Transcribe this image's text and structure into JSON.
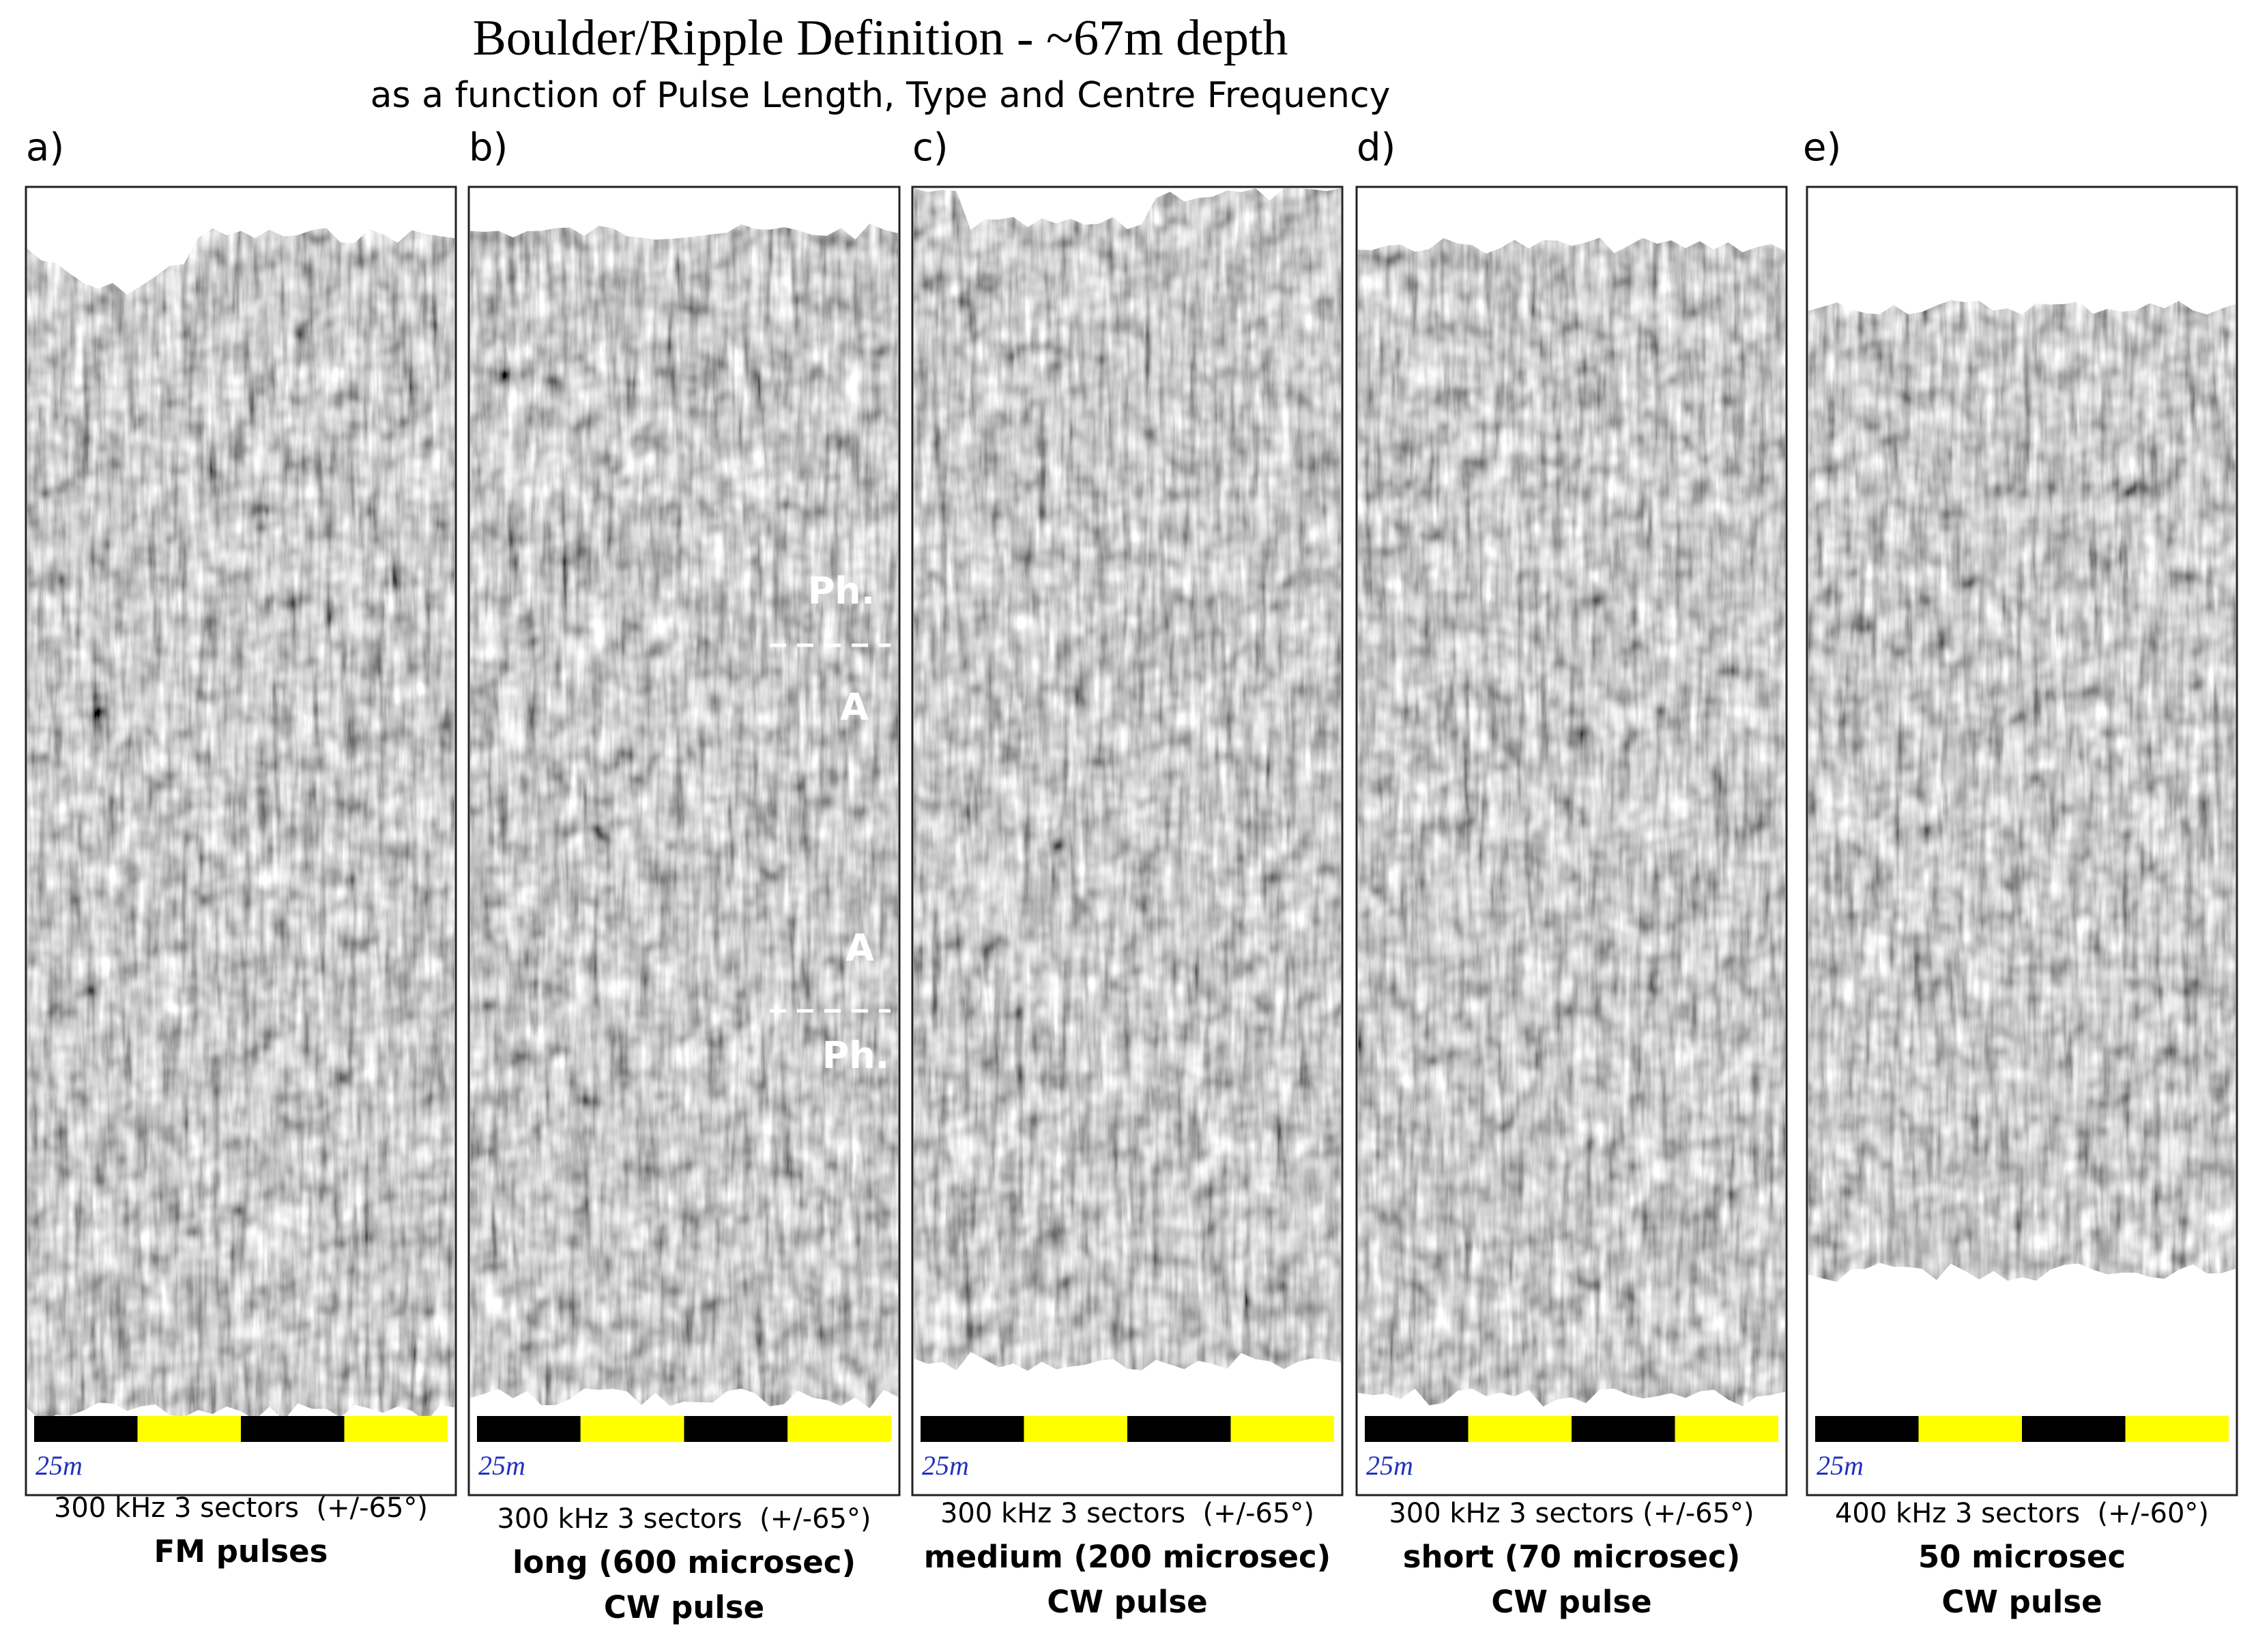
{
  "title": "Boulder/Ripple Definition - ~67m depth",
  "subtitle": "as a function of Pulse Length, Type and Centre Frequency",
  "panels": [
    {
      "letter": "a)",
      "scale_label": "25m",
      "caption": [
        "300 kHz 3 sectors  (+/-65°)",
        "FM pulses"
      ]
    },
    {
      "letter": "b)",
      "scale_label": "25m",
      "caption": [
        "300 kHz 3 sectors  (+/-65°)",
        "long (600 microsec)",
        "CW pulse"
      ],
      "annotations": [
        "Ph.",
        "A",
        "A",
        "Ph."
      ]
    },
    {
      "letter": "c)",
      "scale_label": "25m",
      "caption": [
        "300 kHz 3 sectors  (+/-65°)",
        "medium (200 microsec)",
        "CW pulse"
      ]
    },
    {
      "letter": "d)",
      "scale_label": "25m",
      "caption": [
        "300 kHz 3 sectors (+/-65°)",
        "short (70 microsec)",
        "CW pulse"
      ]
    },
    {
      "letter": "e)",
      "scale_label": "25m",
      "caption": [
        "400 kHz 3 sectors  (+/-60°)",
        "50 microsec",
        "CW pulse"
      ]
    }
  ]
}
